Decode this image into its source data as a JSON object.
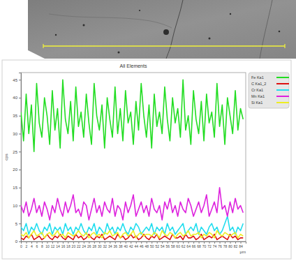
{
  "chart_data": {
    "type": "line",
    "title": "All Elements",
    "x_label": "μm",
    "y_label": "cps",
    "x": [
      0,
      1,
      2,
      3,
      4,
      5,
      6,
      7,
      8,
      9,
      10,
      11,
      12,
      13,
      14,
      15,
      16,
      17,
      18,
      19,
      20,
      21,
      22,
      23,
      24,
      25,
      26,
      27,
      28,
      29,
      30,
      31,
      32,
      33,
      34,
      35,
      36,
      37,
      38,
      39,
      40,
      41,
      42,
      43,
      44,
      45,
      46,
      47,
      48,
      49,
      50,
      51,
      52,
      53,
      54,
      55,
      56,
      57,
      58,
      59,
      60,
      61,
      62,
      63,
      64,
      65,
      66,
      67,
      68,
      69,
      70,
      71,
      72,
      73,
      74,
      75,
      76,
      77,
      78,
      79,
      80,
      81,
      82,
      83,
      84,
      85
    ],
    "series": [
      {
        "name": "Fe Ka1",
        "color": "#22dd22",
        "values": [
          36,
          28,
          41,
          30,
          38,
          25,
          44,
          33,
          29,
          40,
          35,
          27,
          42,
          31,
          37,
          26,
          45,
          34,
          30,
          39,
          28,
          43,
          32,
          36,
          29,
          41,
          33,
          27,
          44,
          35,
          31,
          38,
          26,
          40,
          34,
          29,
          43,
          30,
          37,
          28,
          42,
          33,
          36,
          27,
          39,
          31,
          44,
          35,
          29,
          38,
          26,
          41,
          32,
          36,
          30,
          43,
          34,
          28,
          40,
          33,
          37,
          29,
          45,
          31,
          35,
          27,
          42,
          34,
          30,
          39,
          28,
          41,
          33,
          36,
          29,
          44,
          32,
          38,
          27,
          40,
          35,
          30,
          42,
          31,
          37,
          34
        ]
      },
      {
        "name": "C Ka1_2",
        "color": "#dd1111",
        "values": [
          1,
          0.5,
          1.5,
          1,
          2,
          0.5,
          1,
          1.5,
          0.5,
          1,
          2,
          1,
          0.5,
          1.5,
          1,
          2,
          1,
          0.5,
          1.5,
          1,
          0.5,
          2,
          1,
          1.5,
          0.5,
          1,
          2,
          1,
          0.5,
          1.5,
          1,
          2,
          0.5,
          1,
          1.5,
          1,
          0.5,
          2,
          1,
          1.5,
          0.5,
          1,
          2,
          1,
          1.5,
          0.5,
          1,
          2,
          1,
          0.5,
          1.5,
          1,
          2,
          0.5,
          1,
          1.5,
          1,
          0.5,
          2,
          1,
          1,
          1.5,
          0.5,
          2,
          1,
          1,
          1.5,
          0.5,
          1,
          2,
          0.5,
          1,
          1.5,
          1,
          2,
          0.5,
          1,
          1.5,
          1,
          0.5,
          2,
          1,
          1.5,
          0.5,
          1,
          1
        ]
      },
      {
        "name": "Cr Ka1",
        "color": "#22ddee",
        "values": [
          4,
          3,
          5,
          2,
          4,
          3,
          5,
          3,
          2,
          4,
          3,
          5,
          2,
          4,
          3,
          4,
          2,
          5,
          3,
          4,
          2,
          4,
          3,
          5,
          3,
          2,
          4,
          3,
          5,
          2,
          4,
          3,
          2,
          5,
          3,
          4,
          2,
          4,
          3,
          5,
          3,
          2,
          4,
          3,
          5,
          4,
          2,
          3,
          4,
          3,
          5,
          2,
          4,
          3,
          4,
          2,
          5,
          3,
          4,
          2,
          3,
          4,
          5,
          2,
          3,
          4,
          3,
          5,
          2,
          4,
          3,
          2,
          4,
          5,
          3,
          4,
          2,
          3,
          5,
          7,
          3,
          4,
          2,
          4,
          3,
          5
        ]
      },
      {
        "name": "Mn Ka1",
        "color": "#dd22dd",
        "values": [
          10,
          8,
          11,
          7,
          9,
          12,
          8,
          10,
          7,
          11,
          9,
          6,
          10,
          8,
          12,
          9,
          7,
          11,
          8,
          10,
          13,
          8,
          9,
          7,
          11,
          10,
          6,
          9,
          12,
          8,
          10,
          7,
          11,
          9,
          8,
          12,
          7,
          10,
          9,
          6,
          11,
          8,
          10,
          13,
          7,
          9,
          11,
          8,
          10,
          7,
          12,
          9,
          8,
          10,
          6,
          11,
          9,
          12,
          8,
          10,
          7,
          11,
          9,
          8,
          12,
          10,
          7,
          9,
          11,
          8,
          10,
          13,
          7,
          9,
          11,
          8,
          15,
          9,
          10,
          7,
          11,
          8,
          12,
          9,
          10,
          8
        ]
      },
      {
        "name": "Si Ka1",
        "color": "#eeee22",
        "values": [
          2,
          1.5,
          2.5,
          1,
          2,
          3,
          1.5,
          2,
          2.5,
          1,
          2,
          2.5,
          1.5,
          2,
          3,
          1.5,
          2,
          1,
          2.5,
          2,
          1.5,
          2,
          3,
          2,
          1.5,
          2.5,
          1,
          2,
          2.5,
          1.5,
          2,
          1,
          2.5,
          2,
          3,
          1.5,
          2,
          2.5,
          1,
          2,
          2.5,
          1.5,
          2,
          3,
          1,
          2,
          2.5,
          1.5,
          2,
          2,
          1.5,
          2.5,
          2,
          1,
          3,
          2,
          1.5,
          2.5,
          2,
          1,
          2,
          2.5,
          1.5,
          2,
          3,
          1.5,
          2,
          2,
          2.5,
          1,
          2,
          1.5,
          2.5,
          2,
          1,
          3,
          2,
          1.5,
          2.5,
          2,
          1.5,
          2,
          2.5,
          1,
          2,
          1.5
        ]
      }
    ],
    "xlim": [
      0,
      86
    ],
    "xticks": [
      0,
      2,
      4,
      6,
      8,
      10,
      12,
      14,
      16,
      18,
      20,
      22,
      24,
      26,
      28,
      30,
      32,
      34,
      36,
      38,
      40,
      42,
      44,
      46,
      48,
      50,
      52,
      54,
      56,
      58,
      60,
      62,
      64,
      66,
      68,
      70,
      72,
      74,
      76,
      78,
      80,
      82,
      84
    ],
    "ylim": [
      0,
      47
    ],
    "yticks": [
      0,
      5,
      10,
      15,
      20,
      25,
      30,
      35,
      40,
      45
    ],
    "grid": false,
    "legend": "upper right"
  }
}
